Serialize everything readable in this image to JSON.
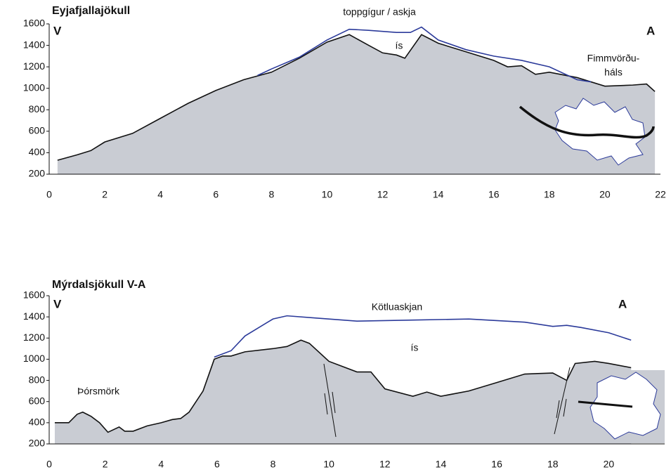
{
  "chart_data": [
    {
      "type": "line",
      "title": "Eyjafjallajökull",
      "annotations": [
        "V",
        "A",
        "toppgígur / askja",
        "ís",
        "Fimmvörðu-",
        "háls"
      ],
      "xlim": [
        0,
        22
      ],
      "xticks": [
        0,
        2,
        4,
        6,
        8,
        10,
        12,
        14,
        16,
        18,
        20,
        22
      ],
      "ylim": [
        200,
        1600
      ],
      "yticks": [
        200,
        400,
        600,
        800,
        1000,
        1200,
        1400,
        1600
      ],
      "series": [
        {
          "color": "#111111",
          "fill": "#c9ccd3",
          "x": [
            0.3,
            1,
            1.5,
            2,
            3,
            4,
            5,
            6,
            7,
            8,
            9,
            10,
            10.8,
            11.5,
            12,
            12.5,
            12.8,
            13.4,
            14,
            15,
            16,
            16.5,
            17,
            17.5,
            18,
            19,
            20,
            21,
            21.5,
            21.8
          ],
          "values": [
            330,
            380,
            420,
            500,
            580,
            720,
            860,
            980,
            1080,
            1150,
            1280,
            1430,
            1500,
            1400,
            1330,
            1310,
            1280,
            1500,
            1420,
            1340,
            1260,
            1200,
            1210,
            1130,
            1150,
            1100,
            1020,
            1030,
            1040,
            970
          ]
        },
        {
          "color": "#2b3a9a",
          "x": [
            7.5,
            8,
            9,
            10,
            10.8,
            11.5,
            12.5,
            13,
            13.4,
            14,
            15,
            16,
            17,
            18,
            19,
            19.5
          ],
          "values": [
            1120,
            1180,
            1290,
            1450,
            1550,
            1540,
            1520,
            1520,
            1570,
            1450,
            1360,
            1300,
            1260,
            1200,
            1080,
            1060
          ]
        }
      ]
    },
    {
      "type": "line",
      "title": "Mýrdalsjökull V-A",
      "annotations": [
        "V",
        "A",
        "Kötluaskjan",
        "ís",
        "Þórsmörk"
      ],
      "xlim": [
        0,
        22
      ],
      "xticks": [
        0,
        2,
        4,
        6,
        8,
        10,
        12,
        14,
        16,
        18,
        20
      ],
      "ylim": [
        200,
        1600
      ],
      "yticks": [
        200,
        400,
        600,
        800,
        1000,
        1200,
        1400,
        1600
      ],
      "series": [
        {
          "color": "#111111",
          "fill": "#c9ccd3",
          "x": [
            0.2,
            0.7,
            1,
            1.2,
            1.5,
            1.8,
            2.1,
            2.5,
            2.7,
            3,
            3.5,
            4,
            4.4,
            4.7,
            5,
            5.5,
            5.9,
            6.2,
            6.5,
            7,
            8,
            8.5,
            9,
            9.3,
            10,
            11,
            11.5,
            12,
            13,
            13.5,
            14,
            15,
            16,
            17,
            18,
            18.5,
            18.8,
            19.5,
            20,
            20.8
          ],
          "values": [
            400,
            400,
            480,
            500,
            460,
            400,
            310,
            360,
            320,
            320,
            370,
            400,
            430,
            440,
            500,
            700,
            1000,
            1030,
            1030,
            1070,
            1100,
            1120,
            1180,
            1150,
            980,
            880,
            880,
            720,
            650,
            690,
            650,
            700,
            780,
            860,
            870,
            800,
            960,
            980,
            960,
            920
          ]
        },
        {
          "color": "#2b3a9a",
          "x": [
            5.9,
            6.5,
            7,
            7.5,
            8,
            8.5,
            9.5,
            11,
            13,
            15,
            17,
            18,
            18.5,
            19,
            20,
            20.8
          ],
          "values": [
            1020,
            1080,
            1220,
            1300,
            1380,
            1410,
            1390,
            1360,
            1370,
            1380,
            1350,
            1310,
            1320,
            1300,
            1250,
            1180
          ]
        }
      ]
    }
  ]
}
